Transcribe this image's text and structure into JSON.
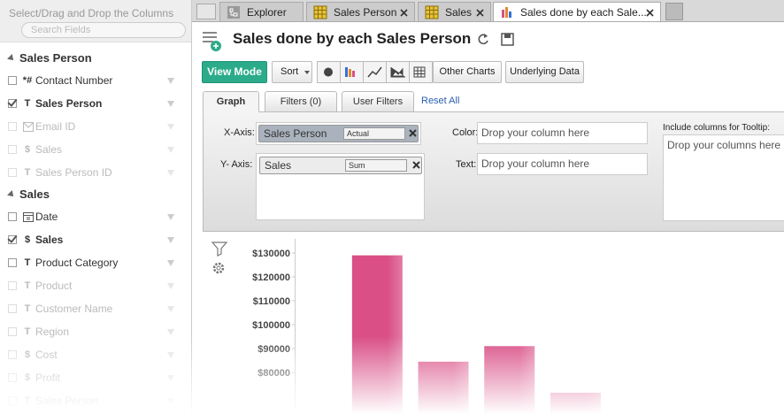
{
  "sidebar": {
    "header": "Select/Drag and Drop the Columns",
    "search_placeholder": "Search Fields",
    "groups": [
      {
        "name": "Sales Person",
        "fields": [
          {
            "icon": "*#",
            "name": "Contact Number",
            "checked": false,
            "dimmed": false
          },
          {
            "icon": "T",
            "name": "Sales Person",
            "checked": true,
            "dimmed": false
          },
          {
            "icon": "email",
            "name": "Email ID",
            "checked": false,
            "dimmed": true
          },
          {
            "icon": "$",
            "name": "Sales",
            "checked": false,
            "dimmed": true
          },
          {
            "icon": "T",
            "name": "Sales Person ID",
            "checked": false,
            "dimmed": true
          }
        ]
      },
      {
        "name": "Sales",
        "fields": [
          {
            "icon": "calendar",
            "name": "Date",
            "checked": false,
            "dimmed": false
          },
          {
            "icon": "$",
            "name": "Sales",
            "checked": true,
            "dimmed": false
          },
          {
            "icon": "T",
            "name": "Product Category",
            "checked": false,
            "dimmed": false
          },
          {
            "icon": "T",
            "name": "Product",
            "checked": false,
            "dimmed": true
          },
          {
            "icon": "T",
            "name": "Customer Name",
            "checked": false,
            "dimmed": true
          },
          {
            "icon": "T",
            "name": "Region",
            "checked": false,
            "dimmed": true
          },
          {
            "icon": "$",
            "name": "Cost",
            "checked": false,
            "dimmed": true
          },
          {
            "icon": "$",
            "name": "Profit",
            "checked": false,
            "dimmed": true
          },
          {
            "icon": "T",
            "name": "Sales Person",
            "checked": false,
            "dimmed": true
          }
        ]
      }
    ]
  },
  "tabs": [
    {
      "label": "Explorer",
      "icon": "explorer",
      "active": false
    },
    {
      "label": "Sales Person",
      "icon": "table",
      "active": false
    },
    {
      "label": "Sales",
      "icon": "table",
      "active": false
    },
    {
      "label": "Sales done by each Sale...",
      "icon": "chart",
      "active": true
    }
  ],
  "report": {
    "title": "Sales done by each Sales Person"
  },
  "toolbar": {
    "view_mode": "View Mode",
    "sort": "Sort",
    "other_charts": "Other Charts",
    "underlying_data": "Underlying Data"
  },
  "designer": {
    "tabs": [
      "Graph",
      "Filters (0)",
      "User Filters"
    ],
    "reset": "Reset All",
    "x_axis": {
      "label": "X-Axis:",
      "column": "Sales Person",
      "function": "Actual"
    },
    "y_axis": {
      "label": "Y- Axis:",
      "column": "Sales",
      "function": "Sum"
    },
    "color": {
      "label": "Color:",
      "placeholder": "Drop your column here"
    },
    "text": {
      "label": "Text:",
      "placeholder": "Drop your column here"
    },
    "tooltip": {
      "label": "Include columns for Tooltip:",
      "placeholder": "Drop your columns here"
    }
  },
  "chart_data": {
    "type": "bar",
    "categories": [
      null,
      null,
      null,
      null
    ],
    "values": [
      129000,
      84500,
      91000,
      71500
    ],
    "color": "#d94f86",
    "ylim": [
      62600,
      135900
    ],
    "yticks": [
      {
        "value": 130000,
        "label": "$130000"
      },
      {
        "value": 120000,
        "label": "$120000"
      },
      {
        "value": 110000,
        "label": "$110000"
      },
      {
        "value": 100000,
        "label": "$100000"
      },
      {
        "value": 90000,
        "label": "$90000"
      },
      {
        "value": 80000,
        "label": "$80000"
      }
    ],
    "grid": false
  }
}
